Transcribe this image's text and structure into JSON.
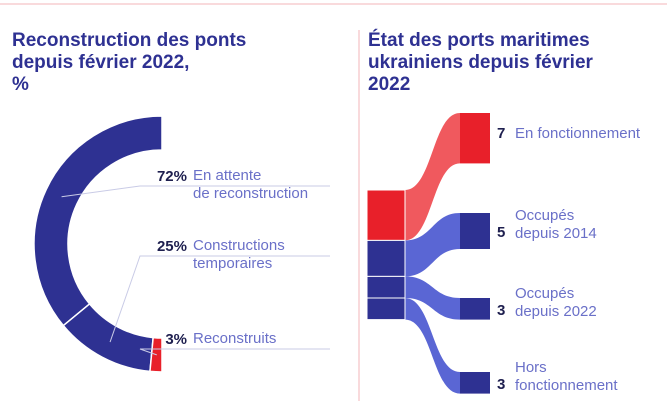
{
  "chart_data": [
    {
      "type": "pie",
      "title": "Reconstruction des ponts\ndepuis février 2022,\n%",
      "categories": [
        "En attente\nde reconstruction",
        "Constructions\ntemporaires",
        "Reconstruits"
      ],
      "values": [
        72,
        25,
        3
      ],
      "value_labels": [
        "72%",
        "25%",
        "3%"
      ],
      "colors": [
        "#2e3192",
        "#2e3192",
        "#e8202a"
      ]
    },
    {
      "type": "sankey",
      "title": "État des ports maritimes\nukrainiens depuis février\n2022",
      "categories": [
        "En fonctionnement",
        "Occupés\ndepuis 2014",
        "Occupés\ndepuis 2022",
        "Hors\nfonctionnement"
      ],
      "values": [
        7,
        5,
        3,
        3
      ],
      "colors": [
        "#e8202a",
        "#2e3192",
        "#2e3192",
        "#2e3192"
      ],
      "link_colors": [
        "#f0595e",
        "#5a66d4",
        "#5a66d4",
        "#5a66d4"
      ]
    }
  ]
}
